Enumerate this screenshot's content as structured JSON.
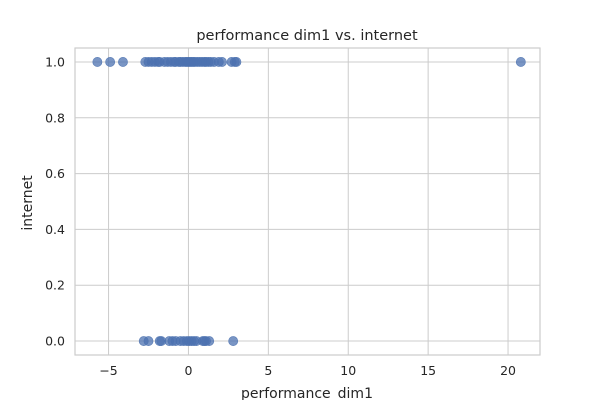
{
  "chart_data": {
    "type": "scatter",
    "title": "performance dim1 vs. internet",
    "xlabel": "performance_dim1",
    "ylabel": "internet",
    "xlim": [
      -7.1,
      22.0
    ],
    "ylim": [
      -0.05,
      1.05
    ],
    "xticks": [
      -5,
      0,
      5,
      10,
      15,
      20
    ],
    "yticks": [
      0.0,
      0.2,
      0.4,
      0.6,
      0.8,
      1.0
    ],
    "xtick_labels": [
      "−5",
      "0",
      "5",
      "10",
      "15",
      "20"
    ],
    "ytick_labels": [
      "0.0",
      "0.2",
      "0.4",
      "0.6",
      "0.8",
      "1.0"
    ],
    "grid": true,
    "legend": false,
    "point_color": "#4c72b0",
    "points": [
      {
        "x": -5.7,
        "y": 1
      },
      {
        "x": -4.9,
        "y": 1
      },
      {
        "x": -4.1,
        "y": 1
      },
      {
        "x": -2.7,
        "y": 1
      },
      {
        "x": -2.5,
        "y": 1
      },
      {
        "x": -2.3,
        "y": 1
      },
      {
        "x": -2.1,
        "y": 1
      },
      {
        "x": -1.9,
        "y": 1
      },
      {
        "x": -1.8,
        "y": 1
      },
      {
        "x": -1.5,
        "y": 1
      },
      {
        "x": -1.3,
        "y": 1
      },
      {
        "x": -1.1,
        "y": 1
      },
      {
        "x": -0.9,
        "y": 1
      },
      {
        "x": -0.8,
        "y": 1
      },
      {
        "x": -0.6,
        "y": 1
      },
      {
        "x": -0.5,
        "y": 1
      },
      {
        "x": -0.35,
        "y": 1
      },
      {
        "x": -0.2,
        "y": 1
      },
      {
        "x": -0.1,
        "y": 1
      },
      {
        "x": 0.0,
        "y": 1
      },
      {
        "x": 0.1,
        "y": 1
      },
      {
        "x": 0.2,
        "y": 1
      },
      {
        "x": 0.3,
        "y": 1
      },
      {
        "x": 0.4,
        "y": 1
      },
      {
        "x": 0.55,
        "y": 1
      },
      {
        "x": 0.7,
        "y": 1
      },
      {
        "x": 0.85,
        "y": 1
      },
      {
        "x": 1.0,
        "y": 1
      },
      {
        "x": 1.1,
        "y": 1
      },
      {
        "x": 1.25,
        "y": 1
      },
      {
        "x": 1.4,
        "y": 1
      },
      {
        "x": 1.6,
        "y": 1
      },
      {
        "x": 1.9,
        "y": 1
      },
      {
        "x": 2.1,
        "y": 1
      },
      {
        "x": 2.7,
        "y": 1
      },
      {
        "x": 2.9,
        "y": 1
      },
      {
        "x": 3.0,
        "y": 1
      },
      {
        "x": 20.8,
        "y": 1
      },
      {
        "x": -2.8,
        "y": 0
      },
      {
        "x": -2.5,
        "y": 0
      },
      {
        "x": -1.8,
        "y": 0
      },
      {
        "x": -1.7,
        "y": 0
      },
      {
        "x": -1.2,
        "y": 0
      },
      {
        "x": -1.0,
        "y": 0
      },
      {
        "x": -0.8,
        "y": 0
      },
      {
        "x": -0.5,
        "y": 0
      },
      {
        "x": -0.3,
        "y": 0
      },
      {
        "x": -0.1,
        "y": 0
      },
      {
        "x": 0.05,
        "y": 0
      },
      {
        "x": 0.2,
        "y": 0
      },
      {
        "x": 0.35,
        "y": 0
      },
      {
        "x": 0.5,
        "y": 0
      },
      {
        "x": 0.9,
        "y": 0
      },
      {
        "x": 1.0,
        "y": 0
      },
      {
        "x": 1.1,
        "y": 0
      },
      {
        "x": 1.3,
        "y": 0
      },
      {
        "x": 2.8,
        "y": 0
      }
    ]
  }
}
